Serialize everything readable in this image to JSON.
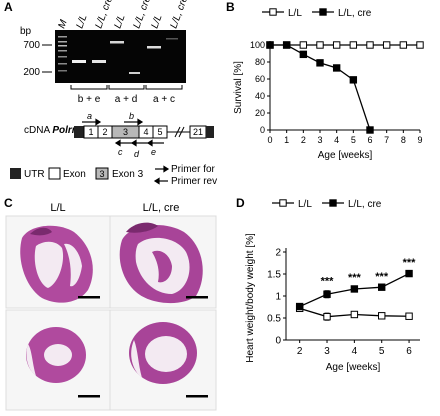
{
  "panels": {
    "A": "A",
    "B": "B",
    "C": "C",
    "D": "D"
  },
  "gel": {
    "bp_label": "bp",
    "markers": [
      "700",
      "200"
    ],
    "lane_labels": [
      "M",
      "L/L",
      "L/L, cre",
      "L/L",
      "L/L, cre",
      "L/L",
      "L/L, cre"
    ],
    "primer_groups": [
      "b + e",
      "a + d",
      "a + c"
    ]
  },
  "cdna": {
    "label_prefix": "cDNA ",
    "gene": "Polrmt",
    "label_suffix": " :",
    "exons": [
      "1",
      "2",
      "3",
      "4",
      "5",
      "21"
    ],
    "primers_top": [
      "a",
      "b"
    ],
    "primers_bottom": [
      "c",
      "d",
      "e"
    ],
    "legend": {
      "utr": "UTR",
      "exon": "Exon",
      "exon3_box": "3",
      "exon3": "Exon 3",
      "primer_for": "Primer for",
      "primer_rev": "Primer rev"
    }
  },
  "histology": {
    "columns": [
      "L/L",
      "L/L, cre"
    ]
  },
  "chart_data": [
    {
      "type": "line",
      "panel": "B",
      "xlabel": "Age [weeks]",
      "ylabel": "Survival [%]",
      "xlim": [
        0,
        9
      ],
      "ylim": [
        0,
        100
      ],
      "xticks": [
        "0",
        "1",
        "2",
        "3",
        "4",
        "5",
        "6",
        "7",
        "8",
        "9"
      ],
      "yticks": [
        "0",
        "20",
        "40",
        "60",
        "80",
        "100"
      ],
      "legend_position": "top",
      "series": [
        {
          "name": "L/L",
          "marker": "open-square",
          "x": [
            0,
            1,
            2,
            3,
            4,
            5,
            6,
            7,
            8,
            9
          ],
          "y": [
            100,
            100,
            100,
            100,
            100,
            100,
            100,
            100,
            100,
            100
          ]
        },
        {
          "name": "L/L, cre",
          "marker": "filled-square",
          "x": [
            0,
            1,
            2,
            3,
            4,
            5,
            6
          ],
          "y": [
            100,
            100,
            89,
            79,
            73,
            59,
            0
          ]
        }
      ]
    },
    {
      "type": "line",
      "panel": "D",
      "xlabel": "Age [weeks]",
      "ylabel": "Heart weight/body weight [%]",
      "xlim": [
        1.5,
        6.4
      ],
      "ylim": [
        0,
        2
      ],
      "xticks": [
        "2",
        "3",
        "4",
        "5",
        "6"
      ],
      "yticks": [
        "0",
        "0.5",
        "1",
        "1.5",
        "2"
      ],
      "legend_position": "top",
      "series": [
        {
          "name": "L/L",
          "marker": "open-square",
          "x": [
            2,
            3,
            4,
            5,
            6
          ],
          "y": [
            0.72,
            0.53,
            0.58,
            0.55,
            0.54
          ],
          "err": [
            0.03,
            0.08,
            0.04,
            0.03,
            0.03
          ]
        },
        {
          "name": "L/L, cre",
          "marker": "filled-square",
          "x": [
            2,
            3,
            4,
            5,
            6
          ],
          "y": [
            0.76,
            1.04,
            1.16,
            1.2,
            1.51
          ],
          "err": [
            0.03,
            0.08,
            0.04,
            0.03,
            0.04
          ]
        }
      ],
      "annotations": [
        {
          "x": 3,
          "text": "***"
        },
        {
          "x": 4,
          "text": "***"
        },
        {
          "x": 5,
          "text": "***"
        },
        {
          "x": 6,
          "text": "***"
        }
      ]
    }
  ]
}
